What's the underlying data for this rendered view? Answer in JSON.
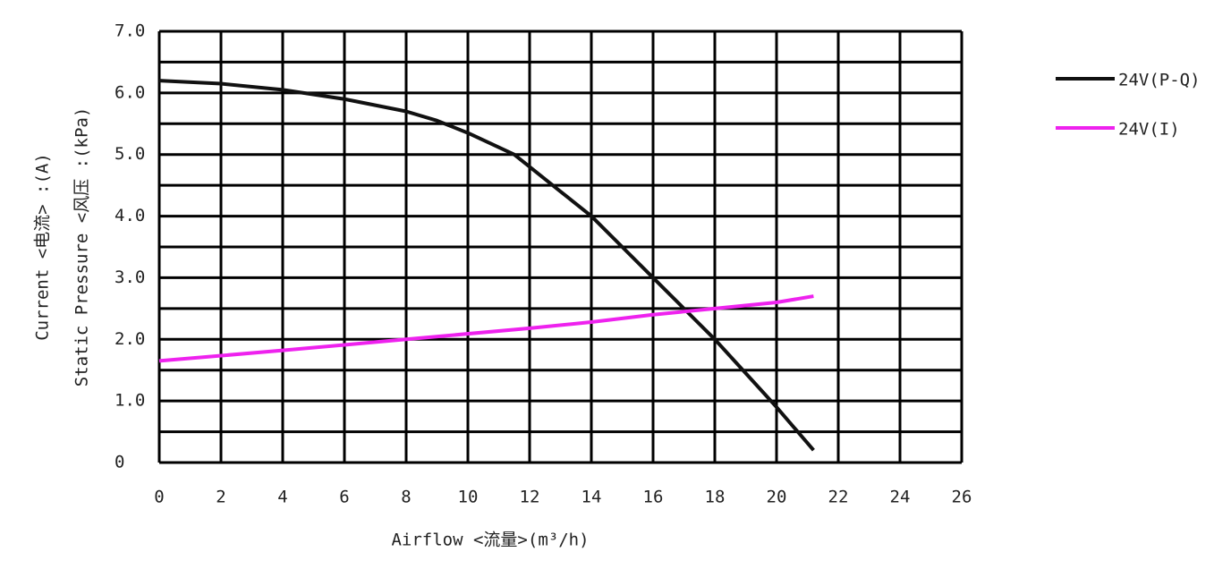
{
  "chart_data": {
    "type": "line",
    "xlabel": "Airflow <流量>(m³/h)",
    "ylabels": [
      {
        "text": "Static  Pressure  <风压 :(kPa)",
        "color": "#222222"
      },
      {
        "text": "Current  <电流> :(A)",
        "color": "#ee22ee"
      }
    ],
    "xlim": [
      0,
      26
    ],
    "xticks": [
      0,
      2,
      4,
      6,
      8,
      10,
      12,
      14,
      16,
      18,
      20,
      22,
      24,
      26
    ],
    "ylim": [
      0,
      7
    ],
    "yticks": [
      0,
      {
        "value": 1,
        "label": "1.0"
      },
      {
        "value": 2,
        "label": "2.0"
      },
      {
        "value": 3,
        "label": "3.0"
      },
      {
        "value": 4,
        "label": "4.0"
      },
      {
        "value": 5,
        "label": "5.0"
      },
      {
        "value": 6,
        "label": "6.0"
      },
      {
        "value": 7,
        "label": "7.0"
      }
    ],
    "y_gridlines": [
      0,
      0.5,
      1,
      1.5,
      2,
      2.5,
      3,
      3.5,
      4,
      4.5,
      5,
      5.5,
      6,
      6.5,
      7
    ],
    "grid": true,
    "legend": "top-right",
    "series": [
      {
        "name": "24V(P-Q)",
        "color": "#111111",
        "x": [
          0,
          2,
          4,
          6,
          8,
          9,
          10,
          11.5,
          12,
          13,
          14,
          15,
          16,
          17,
          18,
          19,
          20,
          21.2
        ],
        "values": [
          6.2,
          6.15,
          6.05,
          5.9,
          5.7,
          5.55,
          5.35,
          5.0,
          4.8,
          4.4,
          4.0,
          3.5,
          3.0,
          2.5,
          2.0,
          1.45,
          0.9,
          0.2
        ]
      },
      {
        "name": "24V(I)",
        "color": "#ee22ee",
        "x": [
          0,
          4,
          8,
          12,
          14,
          16,
          18,
          20,
          21.2
        ],
        "values": [
          1.65,
          1.82,
          2.0,
          2.18,
          2.28,
          2.4,
          2.5,
          2.6,
          2.7
        ]
      }
    ]
  }
}
